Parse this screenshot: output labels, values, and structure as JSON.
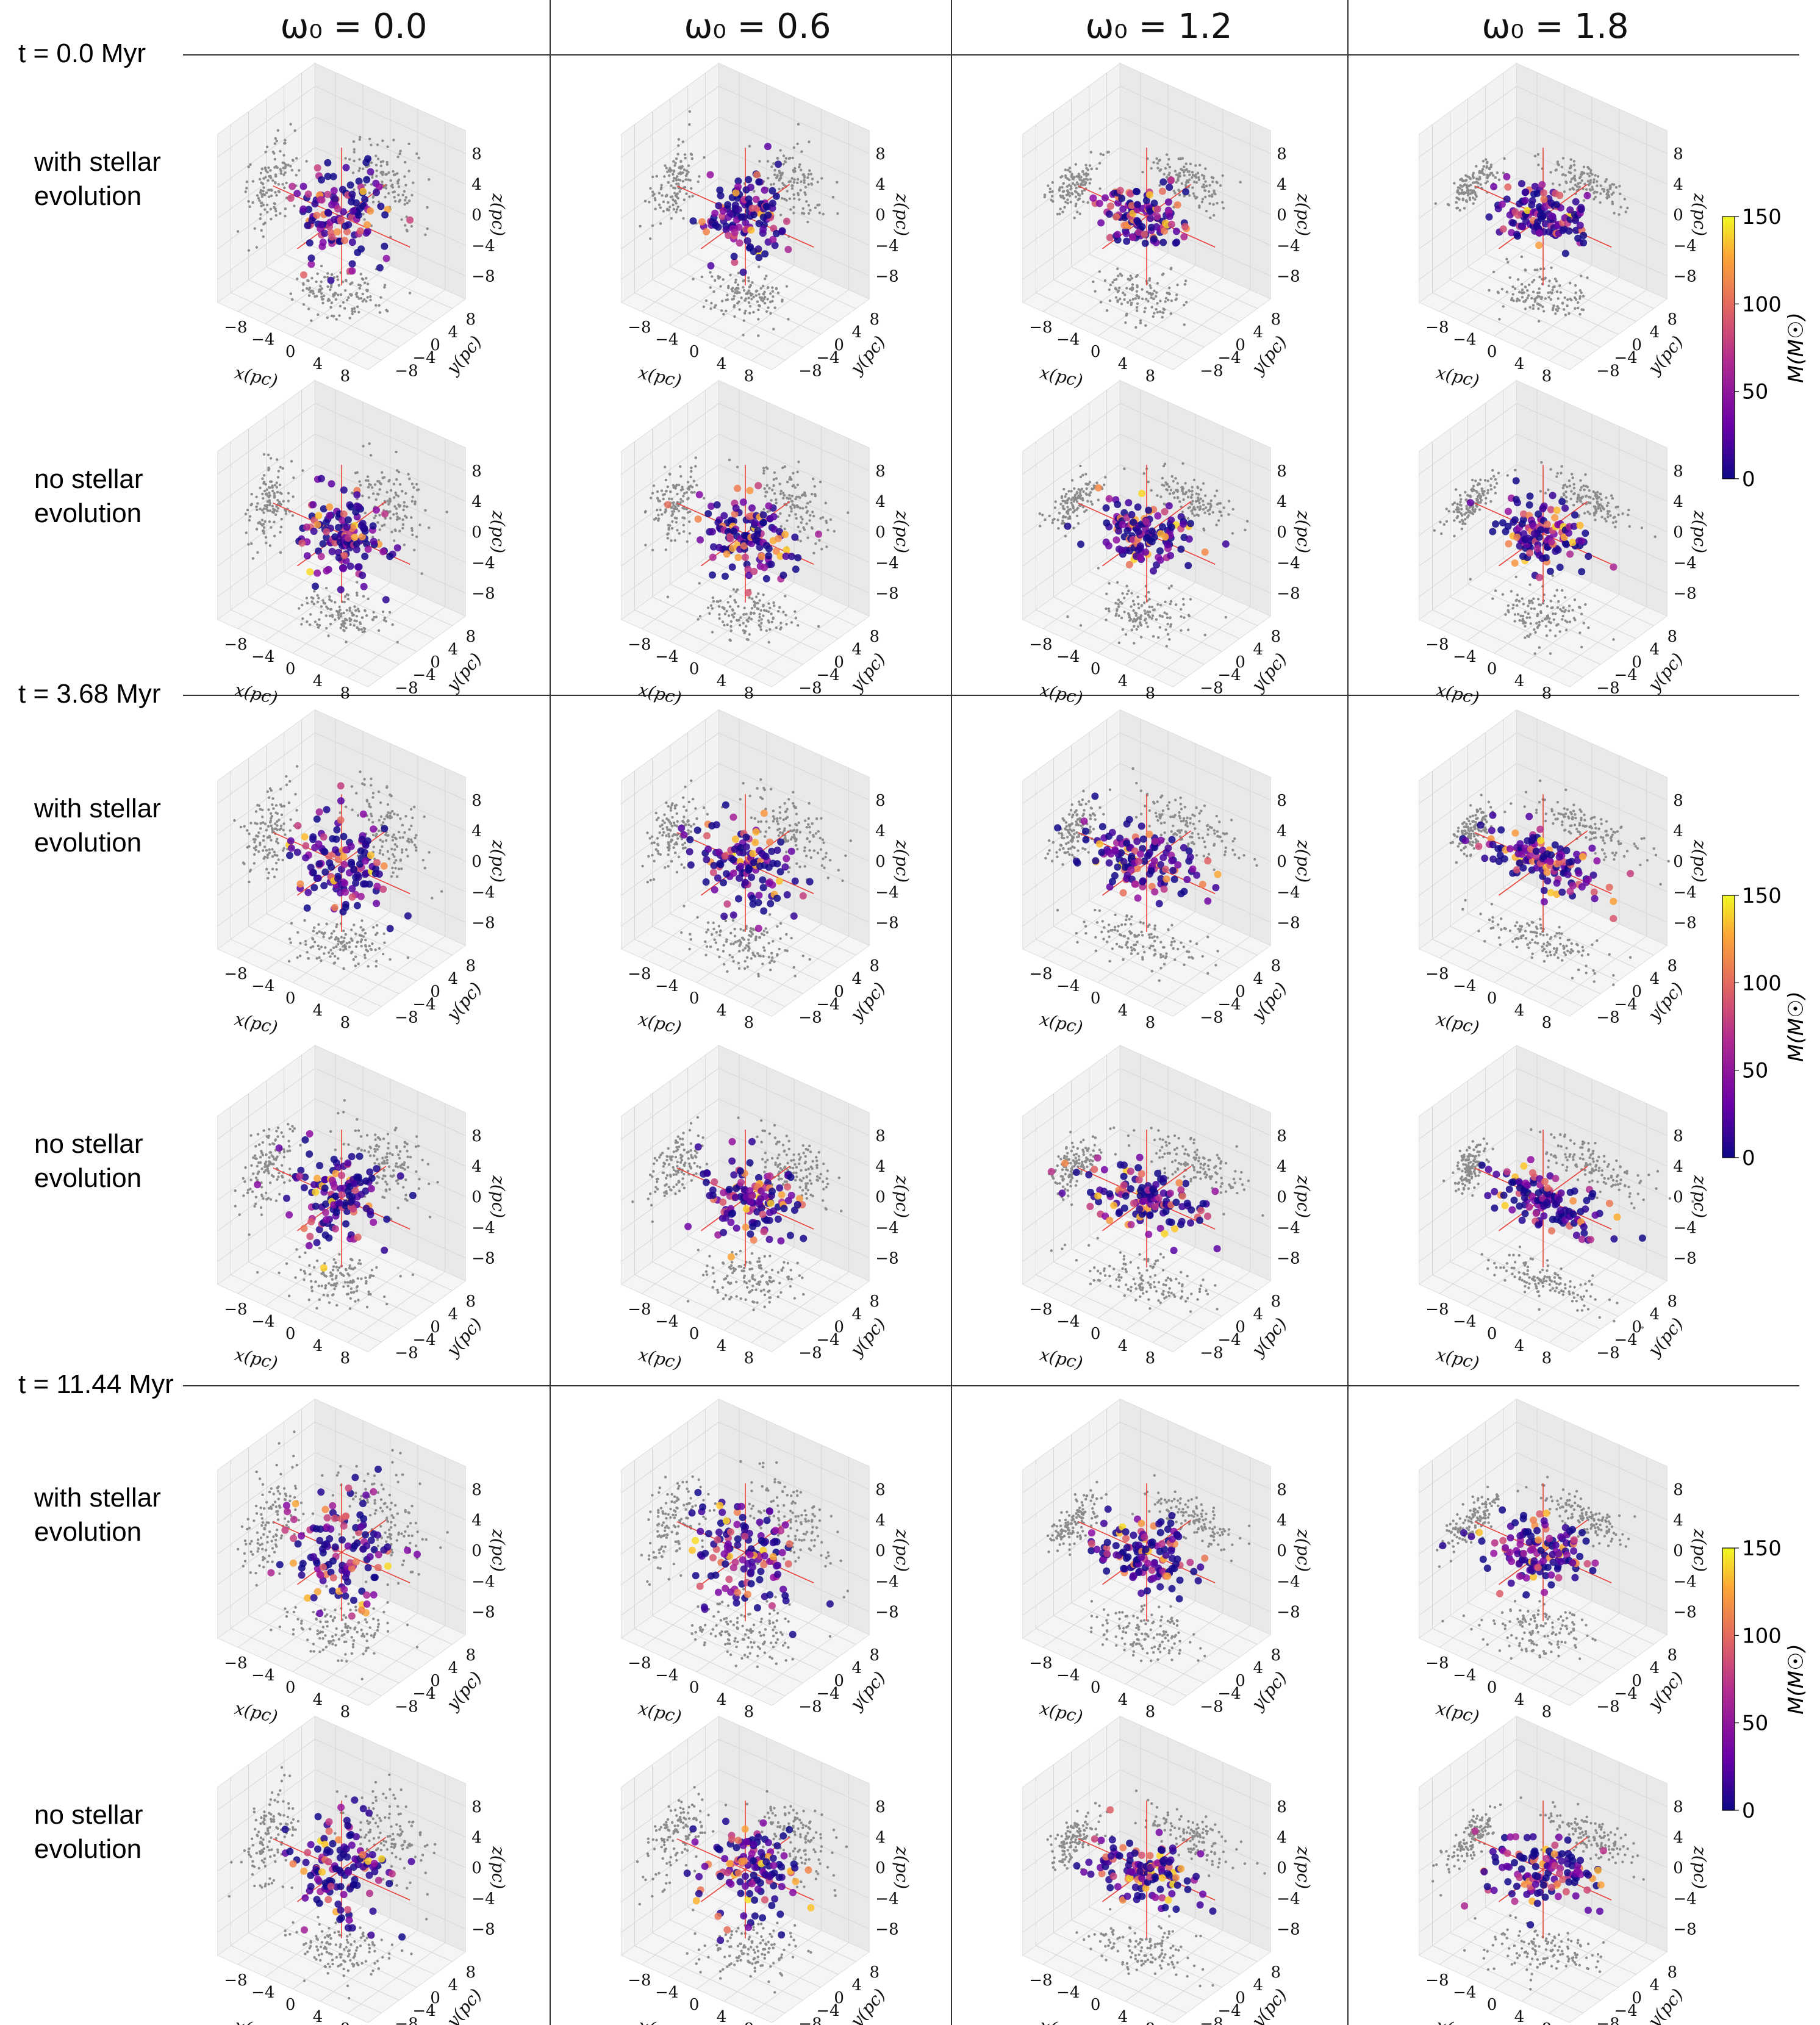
{
  "column_headers": [
    "ω₀ = 0.0",
    "ω₀ = 0.6",
    "ω₀ = 1.2",
    "ω₀ = 1.8"
  ],
  "time_labels": [
    "t = 0.0 Myr",
    "t = 3.68 Myr",
    "t = 11.44 Myr"
  ],
  "row_labels": {
    "with": [
      "with stellar",
      "evolution"
    ],
    "no": [
      "no stellar",
      "evolution"
    ]
  },
  "axes": {
    "xlabel": "x(pc)",
    "ylabel": "y(pc)",
    "zlabel": "z(pc)",
    "x_ticks": [
      "−8",
      "−4",
      "0",
      "4",
      "8"
    ],
    "y_ticks": [
      "−8",
      "−4",
      "0",
      "4",
      "8"
    ],
    "z_ticks": [
      "8",
      "4",
      "0",
      "−4",
      "−8"
    ]
  },
  "colorbar": {
    "label": "M(M☉)",
    "ticks": [
      "150",
      "100",
      "50",
      "0"
    ],
    "colormap": "plasma",
    "colors": [
      "#0d0887",
      "#6a00a8",
      "#b12a90",
      "#e16462",
      "#fca636",
      "#f0f921"
    ]
  },
  "colors": {
    "projection_points": "#8c8c8c",
    "axis_lines": "#e8423a",
    "pane": "#eeeeee"
  },
  "chart_data": {
    "type": "scatter",
    "projection": "3d",
    "xlabel": "x(pc)",
    "ylabel": "y(pc)",
    "zlabel": "z(pc)",
    "xlim": [
      -8,
      8
    ],
    "ylim": [
      -8,
      8
    ],
    "zlim": [
      -8,
      8
    ],
    "color_variable": "M(M☉)",
    "clim": [
      0,
      150
    ],
    "grid": true,
    "columns": [
      0.0,
      0.6,
      1.2,
      1.8
    ],
    "times": [
      "t = 0.0 Myr",
      "t = 3.68 Myr",
      "t = 11.44 Myr"
    ],
    "panels": [
      {
        "time": "t = 0.0 Myr",
        "case": "with stellar evolution",
        "omega0": 0.0,
        "extent_x": 2.8,
        "extent_y": 2.8,
        "extent_z": 2.8
      },
      {
        "time": "t = 0.0 Myr",
        "case": "with stellar evolution",
        "omega0": 0.6,
        "extent_x": 2.8,
        "extent_y": 2.8,
        "extent_z": 2.2
      },
      {
        "time": "t = 0.0 Myr",
        "case": "with stellar evolution",
        "omega0": 1.2,
        "extent_x": 2.8,
        "extent_y": 2.8,
        "extent_z": 1.4
      },
      {
        "time": "t = 0.0 Myr",
        "case": "with stellar evolution",
        "omega0": 1.8,
        "extent_x": 2.8,
        "extent_y": 2.8,
        "extent_z": 1.2
      },
      {
        "time": "t = 0.0 Myr",
        "case": "no stellar evolution",
        "omega0": 0.0,
        "extent_x": 2.8,
        "extent_y": 2.8,
        "extent_z": 2.8
      },
      {
        "time": "t = 0.0 Myr",
        "case": "no stellar evolution",
        "omega0": 0.6,
        "extent_x": 2.8,
        "extent_y": 2.8,
        "extent_z": 2.2
      },
      {
        "time": "t = 0.0 Myr",
        "case": "no stellar evolution",
        "omega0": 1.2,
        "extent_x": 2.8,
        "extent_y": 2.8,
        "extent_z": 1.4
      },
      {
        "time": "t = 0.0 Myr",
        "case": "no stellar evolution",
        "omega0": 1.8,
        "extent_x": 2.8,
        "extent_y": 2.8,
        "extent_z": 1.2
      },
      {
        "time": "t = 3.68 Myr",
        "case": "with stellar evolution",
        "omega0": 0.0,
        "extent_x": 3.0,
        "extent_y": 3.0,
        "extent_z": 3.0
      },
      {
        "time": "t = 3.68 Myr",
        "case": "with stellar evolution",
        "omega0": 0.6,
        "extent_x": 3.0,
        "extent_y": 3.0,
        "extent_z": 2.4
      },
      {
        "time": "t = 3.68 Myr",
        "case": "with stellar evolution",
        "omega0": 1.2,
        "extent_x": 4.0,
        "extent_y": 2.5,
        "extent_z": 1.6
      },
      {
        "time": "t = 3.68 Myr",
        "case": "with stellar evolution",
        "omega0": 1.8,
        "extent_x": 4.5,
        "extent_y": 2.0,
        "extent_z": 1.4
      },
      {
        "time": "t = 3.68 Myr",
        "case": "no stellar evolution",
        "omega0": 0.0,
        "extent_x": 3.0,
        "extent_y": 3.0,
        "extent_z": 3.0
      },
      {
        "time": "t = 3.68 Myr",
        "case": "no stellar evolution",
        "omega0": 0.6,
        "extent_x": 3.0,
        "extent_y": 3.0,
        "extent_z": 2.4
      },
      {
        "time": "t = 3.68 Myr",
        "case": "no stellar evolution",
        "omega0": 1.2,
        "extent_x": 4.0,
        "extent_y": 2.5,
        "extent_z": 1.6
      },
      {
        "time": "t = 3.68 Myr",
        "case": "no stellar evolution",
        "omega0": 1.8,
        "extent_x": 4.5,
        "extent_y": 2.0,
        "extent_z": 1.4
      },
      {
        "time": "t = 11.44 Myr",
        "case": "with stellar evolution",
        "omega0": 0.0,
        "extent_x": 3.2,
        "extent_y": 3.2,
        "extent_z": 3.2
      },
      {
        "time": "t = 11.44 Myr",
        "case": "with stellar evolution",
        "omega0": 0.6,
        "extent_x": 3.2,
        "extent_y": 3.2,
        "extent_z": 2.6
      },
      {
        "time": "t = 11.44 Myr",
        "case": "with stellar evolution",
        "omega0": 1.2,
        "extent_x": 3.0,
        "extent_y": 3.0,
        "extent_z": 1.5
      },
      {
        "time": "t = 11.44 Myr",
        "case": "with stellar evolution",
        "omega0": 1.8,
        "extent_x": 3.0,
        "extent_y": 3.0,
        "extent_z": 1.3
      },
      {
        "time": "t = 11.44 Myr",
        "case": "no stellar evolution",
        "omega0": 0.0,
        "extent_x": 3.2,
        "extent_y": 3.2,
        "extent_z": 3.2
      },
      {
        "time": "t = 11.44 Myr",
        "case": "no stellar evolution",
        "omega0": 0.6,
        "extent_x": 3.2,
        "extent_y": 3.2,
        "extent_z": 2.6
      },
      {
        "time": "t = 11.44 Myr",
        "case": "no stellar evolution",
        "omega0": 1.2,
        "extent_x": 3.0,
        "extent_y": 3.0,
        "extent_z": 1.5
      },
      {
        "time": "t = 11.44 Myr",
        "case": "no stellar evolution",
        "omega0": 1.8,
        "extent_x": 3.0,
        "extent_y": 3.0,
        "extent_z": 1.3
      }
    ]
  }
}
